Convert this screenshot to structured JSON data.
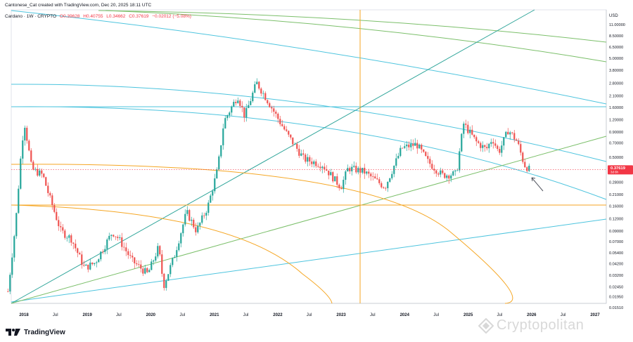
{
  "header": {
    "symbol": "Cantonese_Cat created with TradingView.com, Dec 20, 2025 18:11 UTC",
    "pair": "Cardano · 1W · CRYPTO",
    "open": "O0.39628",
    "high": "H0.40755",
    "low": "L0.34662",
    "close": "C0.37619",
    "change": "−0.02012 (−5.08%)"
  },
  "currency": "USD",
  "price_tag": {
    "value": "0.37619",
    "sub": "3d 6h"
  },
  "branding": {
    "tradingview": "TradingView",
    "watermark": "Cryptopolitan"
  },
  "colors": {
    "up": "#26a69a",
    "down": "#ef5350",
    "cyan_line": "#4dc4de",
    "green_line": "#7bbf6a",
    "teal_line": "#2fa59a",
    "orange_line": "#f5a623",
    "price_tag_bg": "#f23645"
  },
  "chart_data": {
    "type": "candlestick",
    "title": "Cardano · 1W · CRYPTO",
    "scale": "log",
    "ylabel": "USD",
    "ylim": [
      0.0151,
      14.5
    ],
    "x_ticks": [
      "2018",
      "Jul",
      "2019",
      "Jul",
      "2020",
      "Jul",
      "2021",
      "Jul",
      "2022",
      "Jul",
      "2023",
      "Jul",
      "2024",
      "Jul",
      "2025",
      "Jul",
      "2026",
      "Jul",
      "2027"
    ],
    "y_ticks": [
      "11.00000",
      "8.50000",
      "6.50000",
      "5.00000",
      "3.80000",
      "2.80000",
      "2.10000",
      "1.60000",
      "1.20000",
      "0.90000",
      "0.70000",
      "0.50000",
      "0.37619",
      "0.28000",
      "0.21000",
      "0.16000",
      "0.12000",
      "0.09000",
      "0.07000",
      "0.05400",
      "0.04200",
      "0.03200",
      "0.02450",
      "0.01950",
      "0.01510"
    ],
    "price_path": [
      [
        "2017-10-01",
        0.022
      ],
      [
        "2017-11-15",
        0.11
      ],
      [
        "2017-12-20",
        0.7
      ],
      [
        "2018-01-05",
        1.1
      ],
      [
        "2018-02-15",
        0.38
      ],
      [
        "2018-04-20",
        0.33
      ],
      [
        "2018-05-20",
        0.22
      ],
      [
        "2018-08-01",
        0.09
      ],
      [
        "2018-10-01",
        0.075
      ],
      [
        "2018-12-15",
        0.038
      ],
      [
        "2019-02-15",
        0.043
      ],
      [
        "2019-05-25",
        0.088
      ],
      [
        "2019-07-01",
        0.075
      ],
      [
        "2019-09-15",
        0.045
      ],
      [
        "2019-12-15",
        0.033
      ],
      [
        "2020-02-15",
        0.062
      ],
      [
        "2020-03-15",
        0.025
      ],
      [
        "2020-05-15",
        0.05
      ],
      [
        "2020-07-25",
        0.14
      ],
      [
        "2020-09-20",
        0.09
      ],
      [
        "2020-11-25",
        0.16
      ],
      [
        "2021-01-20",
        0.38
      ],
      [
        "2021-02-25",
        1.15
      ],
      [
        "2021-05-15",
        2.1
      ],
      [
        "2021-06-25",
        1.3
      ],
      [
        "2021-09-01",
        2.85
      ],
      [
        "2021-10-25",
        2.0
      ],
      [
        "2021-12-20",
        1.35
      ],
      [
        "2022-02-25",
        0.85
      ],
      [
        "2022-06-01",
        0.48
      ],
      [
        "2022-09-15",
        0.42
      ],
      [
        "2022-12-30",
        0.25
      ],
      [
        "2023-02-10",
        0.39
      ],
      [
        "2023-05-10",
        0.36
      ],
      [
        "2023-07-10",
        0.3
      ],
      [
        "2023-09-10",
        0.25
      ],
      [
        "2023-12-15",
        0.62
      ],
      [
        "2024-03-10",
        0.68
      ],
      [
        "2024-05-15",
        0.45
      ],
      [
        "2024-08-05",
        0.33
      ],
      [
        "2024-10-25",
        0.34
      ],
      [
        "2024-12-05",
        1.1
      ],
      [
        "2025-02-15",
        0.72
      ],
      [
        "2025-04-15",
        0.6
      ],
      [
        "2025-05-20",
        0.78
      ],
      [
        "2025-06-25",
        0.56
      ],
      [
        "2025-08-20",
        0.95
      ],
      [
        "2025-10-10",
        0.72
      ],
      [
        "2025-11-20",
        0.42
      ],
      [
        "2025-12-20",
        0.37619
      ]
    ],
    "last_close": 0.37619
  }
}
